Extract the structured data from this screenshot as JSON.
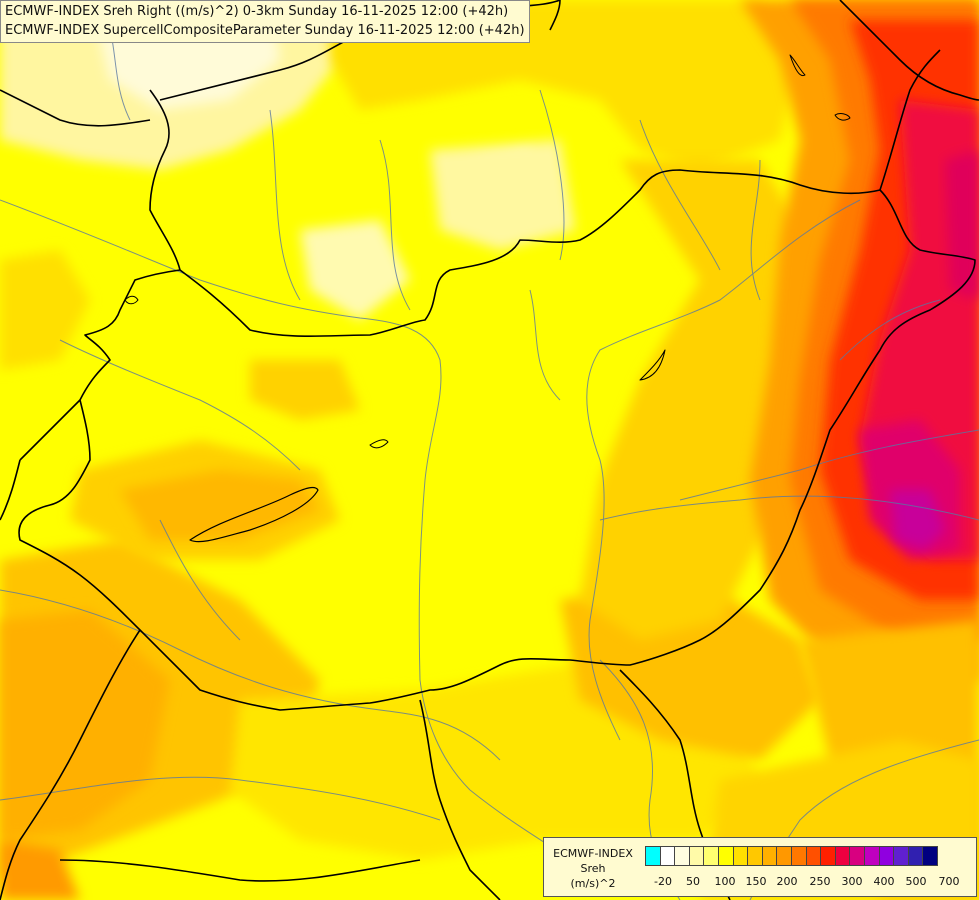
{
  "header": {
    "line1": "ECMWF-INDEX Sreh Right ((m/s)^2) 0-3km Sunday 16-11-2025 12:00 (+42h)",
    "line2": "ECMWF-INDEX SupercellCompositeParameter Sunday 16-11-2025 12:00 (+42h)"
  },
  "legend": {
    "title": "ECMWF-INDEX",
    "variable": "Sreh",
    "unit": "(m/s)^2",
    "colors": [
      "#00ffff",
      "#ffffff",
      "#fffde0",
      "#fffaa8",
      "#ffff70",
      "#ffff00",
      "#ffe000",
      "#ffc800",
      "#ffb000",
      "#ff9800",
      "#ff7800",
      "#ff5000",
      "#ff2000",
      "#ee0040",
      "#d80080",
      "#c000c0",
      "#9000e0",
      "#6020d0",
      "#3020b0",
      "#000080"
    ],
    "tick_labels": [
      "-20",
      "50",
      "100",
      "150",
      "200",
      "250",
      "300",
      "400",
      "500",
      "700"
    ]
  },
  "map": {
    "region": "Pannonian Basin / Hungary",
    "levels": {
      "light_yellow": "#fffab0",
      "yellow": "#ffff00",
      "gold": "#ffe000",
      "orange_light": "#ffc800",
      "orange": "#ffa000",
      "orange_dark": "#ff7000",
      "red": "#ff2000",
      "magenta": "#e00070",
      "purple": "#c000a0"
    }
  }
}
